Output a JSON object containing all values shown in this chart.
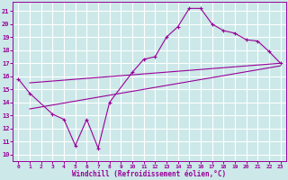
{
  "xlabel": "Windchill (Refroidissement éolien,°C)",
  "bg_color": "#cce8e8",
  "line_color": "#990099",
  "grid_color": "#ffffff",
  "xlim": [
    -0.5,
    23.5
  ],
  "ylim": [
    9.5,
    21.7
  ],
  "yticks": [
    10,
    11,
    12,
    13,
    14,
    15,
    16,
    17,
    18,
    19,
    20,
    21
  ],
  "xticks": [
    0,
    1,
    2,
    3,
    4,
    5,
    6,
    7,
    8,
    9,
    10,
    11,
    12,
    13,
    14,
    15,
    16,
    17,
    18,
    19,
    20,
    21,
    22,
    23
  ],
  "curve1_x": [
    0,
    1,
    3,
    4,
    5,
    6,
    7,
    8,
    10,
    11,
    12,
    13,
    14,
    15,
    16,
    17,
    18,
    19,
    20,
    21,
    22,
    23
  ],
  "curve1_y": [
    15.8,
    14.7,
    13.1,
    12.7,
    10.7,
    12.7,
    10.5,
    14.0,
    16.3,
    17.3,
    17.5,
    19.0,
    19.8,
    21.2,
    21.2,
    20.0,
    19.5,
    19.3,
    18.8,
    18.7,
    17.9,
    17.0
  ],
  "curve2_x": [
    1,
    23
  ],
  "curve2_y": [
    15.5,
    17.0
  ],
  "curve3_x": [
    1,
    23
  ],
  "curve3_y": [
    13.5,
    16.8
  ]
}
